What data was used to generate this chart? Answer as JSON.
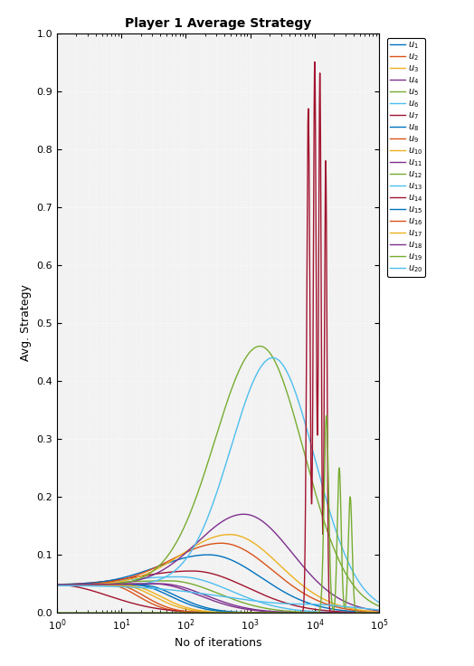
{
  "title": "Player 1 Average Strategy",
  "xlabel": "No of iterations",
  "ylabel": "Avg. Strategy",
  "xlim": [
    1,
    100000
  ],
  "ylim": [
    0,
    1
  ],
  "n_lines": 20,
  "colors": [
    "#0072BD",
    "#D95319",
    "#EDB120",
    "#7E2F8E",
    "#77AC30",
    "#4DBEEE",
    "#A2142F",
    "#0072BD",
    "#D95319",
    "#EDB120",
    "#7E2F8E",
    "#77AC30",
    "#4DBEEE",
    "#A2142F",
    "#0072BD",
    "#D95319",
    "#EDB120",
    "#7E2F8E",
    "#77AC30",
    "#4DBEEE"
  ],
  "labels": [
    "u_1",
    "u_2",
    "u_3",
    "u_4",
    "u_5",
    "u_6",
    "u_7",
    "u_8",
    "u_9",
    "u_10",
    "u_11",
    "u_12",
    "u_13",
    "u_14",
    "u_15",
    "u_16",
    "u_17",
    "u_18",
    "u_19",
    "u_20"
  ],
  "bg_color": "#f2f2f2",
  "fig_bg": "#ffffff"
}
